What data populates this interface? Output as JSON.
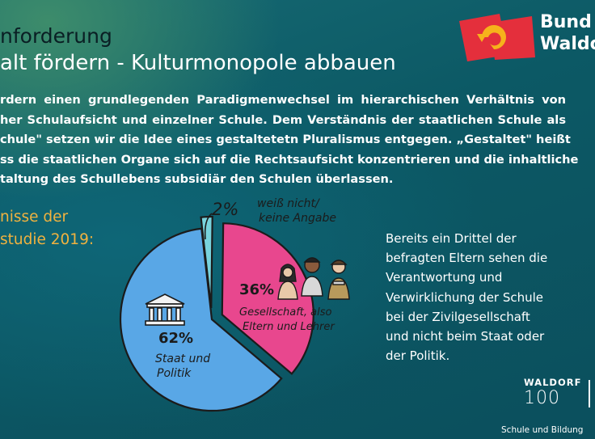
{
  "heading": {
    "line1": "nforderung",
    "line2": "alt fördern - Kulturmonopole abbauen"
  },
  "body_lines": [
    "rdern einen grundlegenden Paradigmenwechsel im hierarchischen Verhältnis von",
    "her Schulaufsicht und einzelner Schule. Dem Verständnis der staatlichen Schule als",
    "chule\" setzen wir die Idee eines gestaltetetn Pluralismus entgegen. „Gestaltet\" heißt",
    "ss die staatlichen Organe sich auf die Rechtsaufsicht konzentrieren und die inhaltliche",
    "taltung des Schullebens subsidiär den Schulen überlassen."
  ],
  "results_label": {
    "line1": "nisse der",
    "line2": "studie 2019:"
  },
  "right_text_lines": [
    "Bereits ein Drittel der",
    "befragten Eltern sehen die",
    "Verantwortung und",
    "Verwirklichung der Schule",
    "bei der Zivilgesellschaft",
    "und nicht beim Staat oder",
    "der Politik."
  ],
  "brand": {
    "line1": "Bund d",
    "line2": "Waldo"
  },
  "waldorf100": {
    "word": "WALDORF",
    "number": "100"
  },
  "footer": "Schule und Bildung",
  "chart_data": {
    "type": "pie",
    "title": "",
    "slices": [
      {
        "label": "Staat und Politik",
        "label_lines": [
          "Staat und",
          "Politik"
        ],
        "value": 62,
        "value_label": "62%",
        "color": "#59a7e6",
        "exploded": false
      },
      {
        "label": "Gesellschaft, also Eltern und Lehrer",
        "label_lines": [
          "Gesellschaft, also",
          "Eltern und Lehrer"
        ],
        "value": 36,
        "value_label": "36%",
        "color": "#e8478e",
        "exploded": true
      },
      {
        "label": "weiß nicht / keine Angabe",
        "label_lines": [
          "weiß nicht/",
          "keine Angabe"
        ],
        "value": 2,
        "value_label": "2%",
        "color": "#78d3dd",
        "exploded": true
      }
    ]
  },
  "colors": {
    "background": "#0f5c68",
    "accent_orange": "#f0b23f",
    "logo_red": "#e42f3c",
    "logo_yellow": "#f6b21b"
  }
}
